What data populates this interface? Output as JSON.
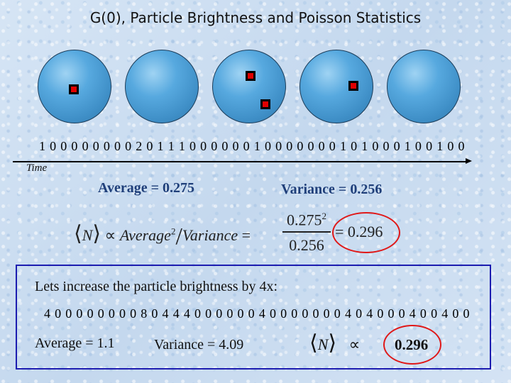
{
  "title": "G(0), Particle Brightness and Poisson Statistics",
  "sequence_1": "1000000002011100000010000000101000100100",
  "time_label": "Time",
  "stats_1": {
    "average": "Average = 0.275",
    "variance": "Variance = 0.256"
  },
  "formula_1": {
    "lhs_symbol": "N",
    "propto": "∝",
    "average_word": "Average",
    "superscript": "2",
    "slash": "/",
    "variance_word": "Variance",
    "equals": "=",
    "numerator": "0.275",
    "denominator": "0.256",
    "result": "= 0.296"
  },
  "increase": {
    "text": "Lets increase the particle brightness by 4x:",
    "sequence_2": "4000000008044400000040000000404000400400",
    "average": "Average = 1.1",
    "variance": "Variance = 4.09",
    "formula_symbol": "N",
    "propto": "∝",
    "result": "0.296"
  },
  "colors": {
    "sphere": "#4a9ad3",
    "particle": "#e00000",
    "stat_text": "#1f3f7a",
    "highlight": "#e01818",
    "box_border": "#1c1cb0"
  }
}
